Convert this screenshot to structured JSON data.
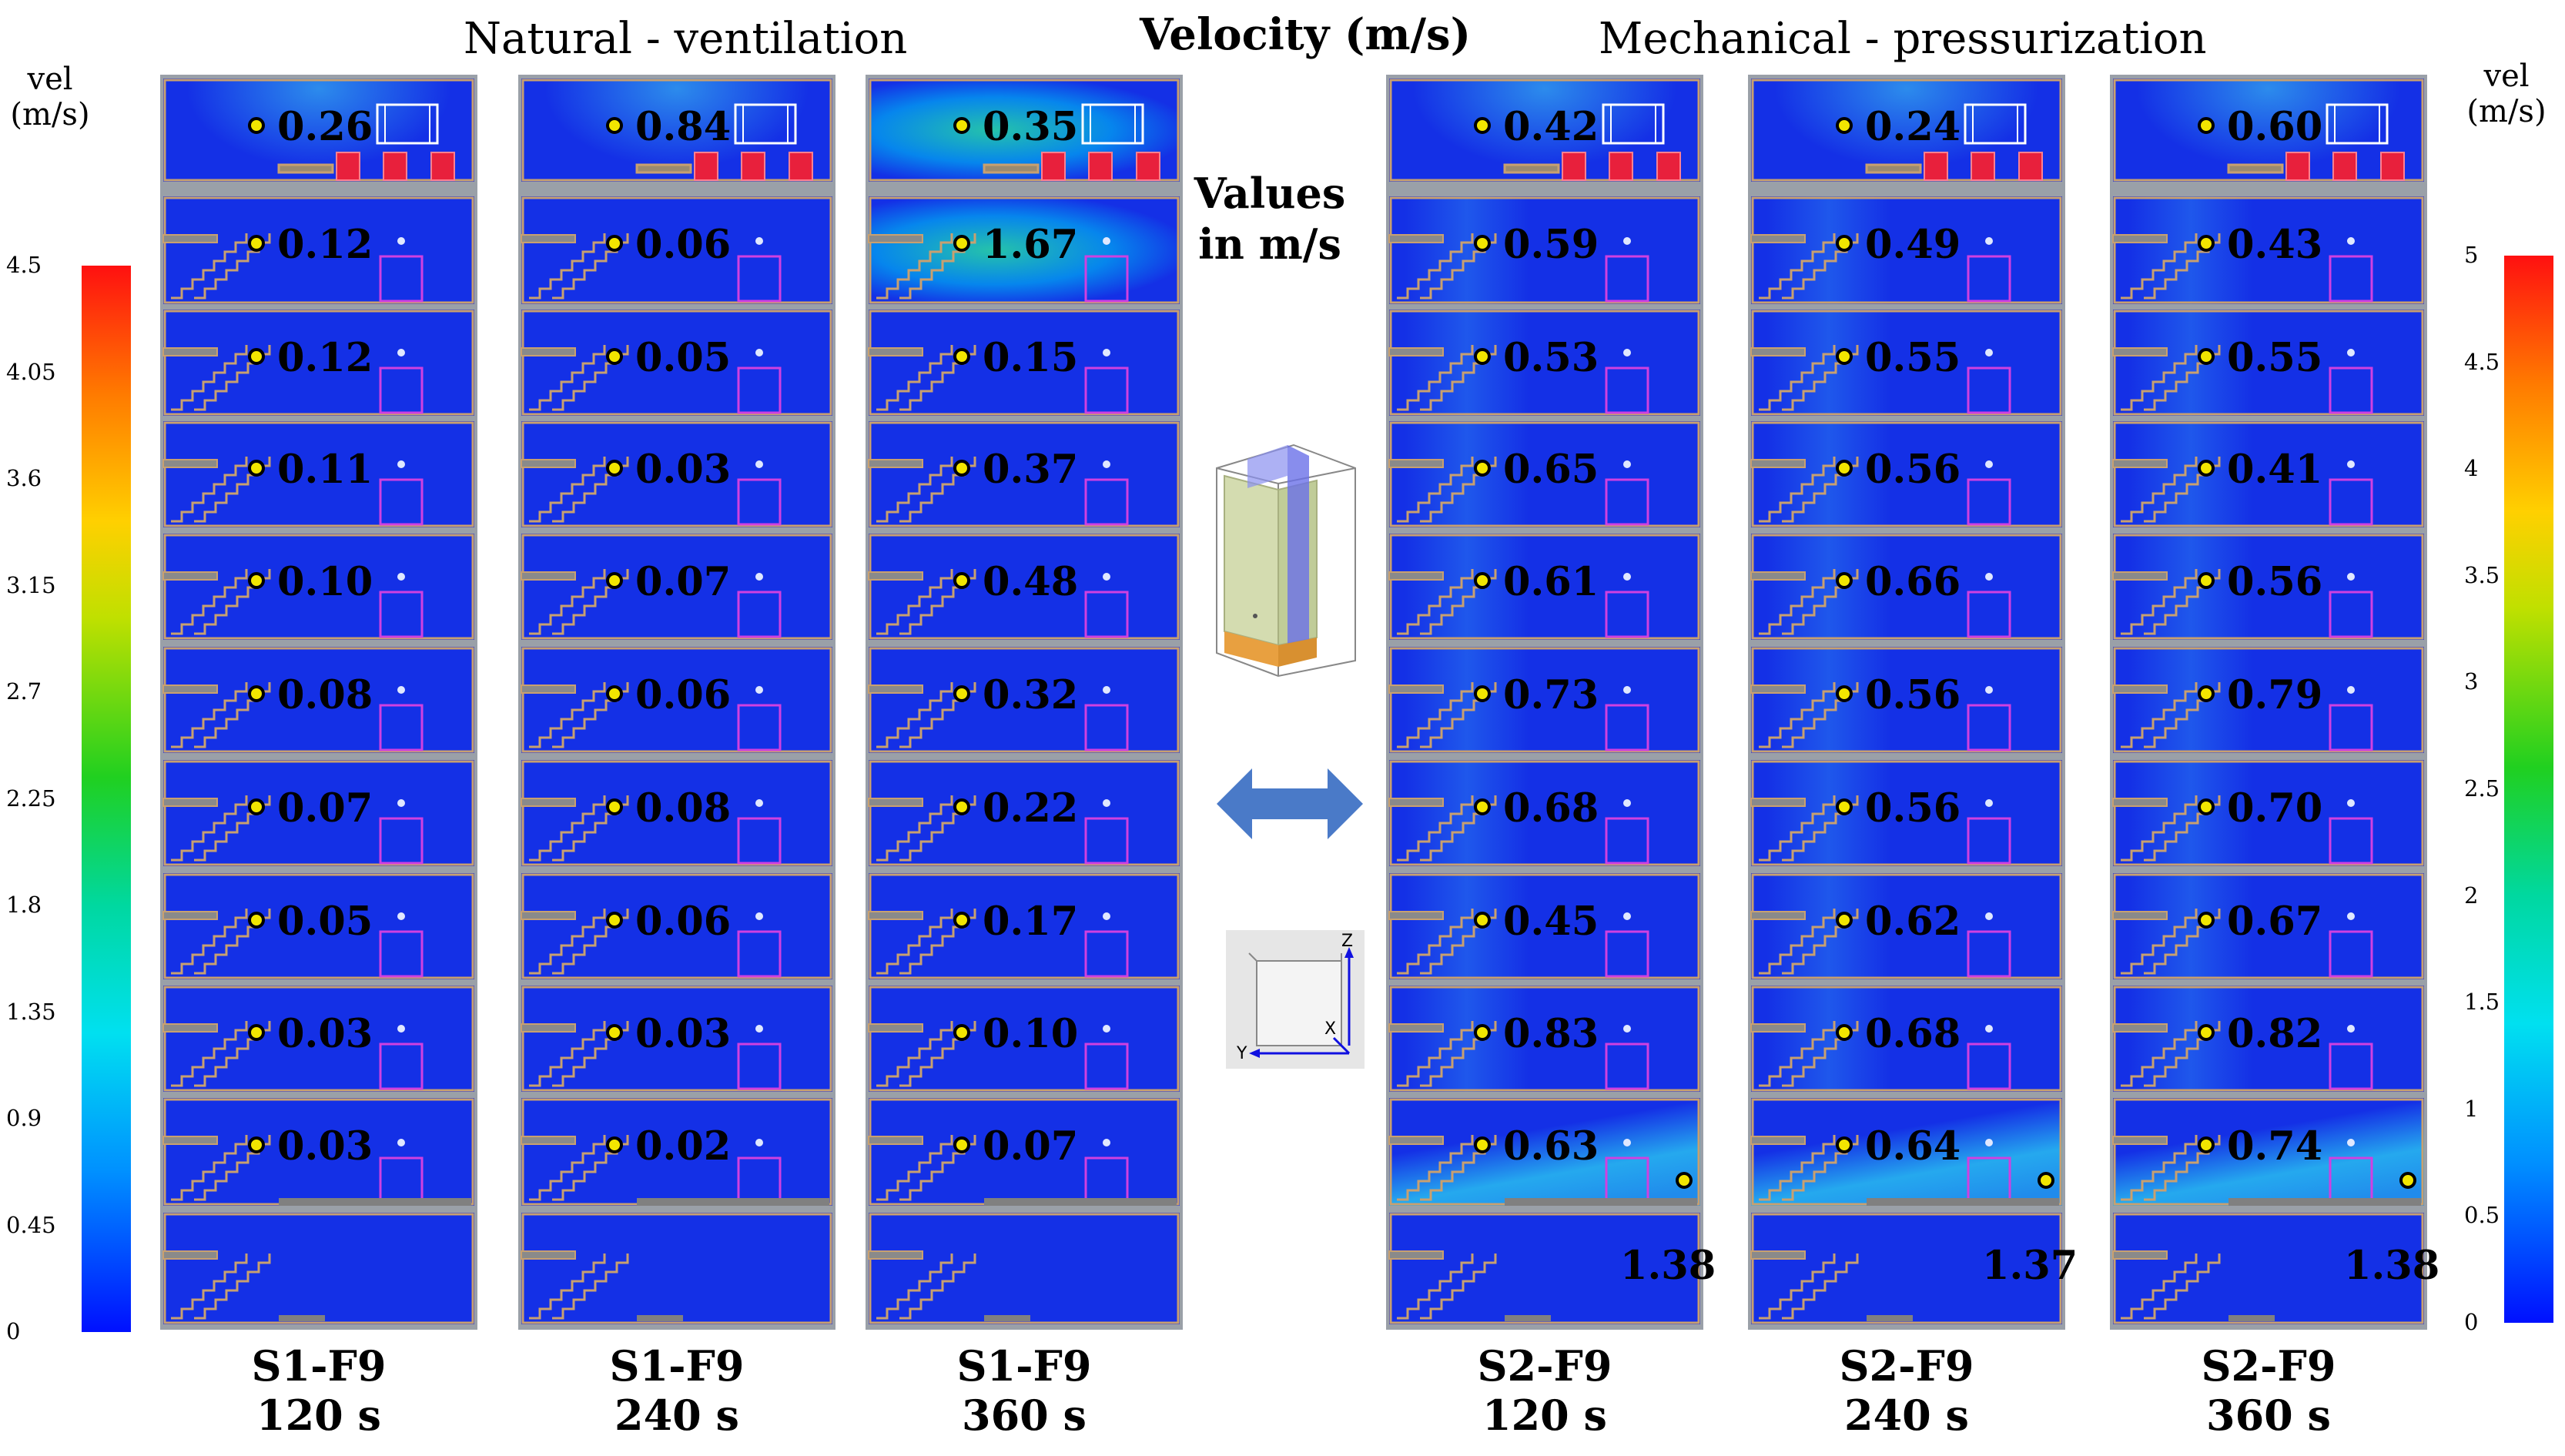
{
  "headers": {
    "left": "Natural - ventilation",
    "center": "Velocity (m/s)",
    "right": "Mechanical  - pressurization"
  },
  "middle": {
    "values_label_line1": "Values",
    "values_label_line2": "in m/s"
  },
  "left_scale": {
    "title_line1": "vel",
    "title_line2": "(m/s)",
    "ticks": [
      "4.5",
      "4.05",
      "3.6",
      "3.15",
      "2.7",
      "2.25",
      "1.8",
      "1.35",
      "0.9",
      "0.45",
      "0"
    ],
    "min": 0,
    "max": 4.5
  },
  "right_scale": {
    "title_line1": "vel",
    "title_line2": "(m/s)",
    "ticks": [
      "5",
      "4.5",
      "4",
      "3.5",
      "3",
      "2.5",
      "2",
      "1.5",
      "1",
      "0.5",
      "0"
    ],
    "min": 0,
    "max": 5
  },
  "colors": {
    "field_blue": "#1430e6",
    "wall": "#c8a070",
    "door": "#d040e0",
    "fan": "#e8203c",
    "dot": "#f2e600",
    "arrow": "#4a7ac8"
  },
  "columns": [
    {
      "scenario": "S1-F9",
      "time": "120 s",
      "group": "natural",
      "values": [
        "0.26",
        "0.12",
        "0.12",
        "0.11",
        "0.10",
        "0.08",
        "0.07",
        "0.05",
        "0.03",
        "0.03"
      ],
      "bottom_value": "",
      "turbulence": "low"
    },
    {
      "scenario": "S1-F9",
      "time": "240 s",
      "group": "natural",
      "values": [
        "0.84",
        "0.06",
        "0.05",
        "0.03",
        "0.07",
        "0.06",
        "0.08",
        "0.06",
        "0.03",
        "0.02"
      ],
      "bottom_value": "",
      "turbulence": "low"
    },
    {
      "scenario": "S1-F9",
      "time": "360 s",
      "group": "natural",
      "values": [
        "0.35",
        "1.67",
        "0.15",
        "0.37",
        "0.48",
        "0.32",
        "0.22",
        "0.17",
        "0.10",
        "0.07"
      ],
      "bottom_value": "",
      "turbulence": "top"
    },
    {
      "scenario": "S2-F9",
      "time": "120 s",
      "group": "mechanical",
      "values": [
        "0.42",
        "0.59",
        "0.53",
        "0.65",
        "0.61",
        "0.73",
        "0.68",
        "0.45",
        "0.83",
        "0.63"
      ],
      "bottom_value": "1.38",
      "turbulence": "plume"
    },
    {
      "scenario": "S2-F9",
      "time": "240 s",
      "group": "mechanical",
      "values": [
        "0.24",
        "0.49",
        "0.55",
        "0.56",
        "0.66",
        "0.56",
        "0.56",
        "0.62",
        "0.68",
        "0.64"
      ],
      "bottom_value": "1.37",
      "turbulence": "plume"
    },
    {
      "scenario": "S2-F9",
      "time": "360 s",
      "group": "mechanical",
      "values": [
        "0.60",
        "0.43",
        "0.55",
        "0.41",
        "0.56",
        "0.79",
        "0.70",
        "0.67",
        "0.82",
        "0.74"
      ],
      "bottom_value": "1.38",
      "turbulence": "plume"
    }
  ],
  "axes_icon": {
    "z": "Z",
    "y": "Y",
    "x": "X"
  }
}
